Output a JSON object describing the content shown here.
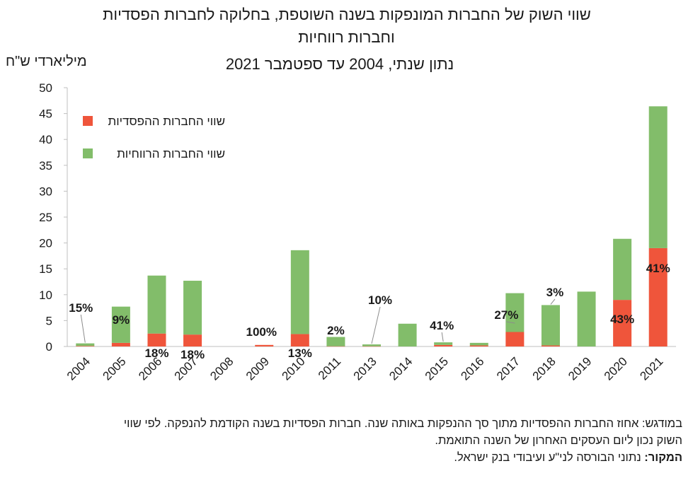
{
  "title_line1": "שווי השוק של החברות המונפקות בשנה השוטפת, בחלוקה לחברות הפסדיות",
  "title_line2": "וחברות רווחיות",
  "subtitle": "נתון שנתי, 2004 עד ספטמבר 2021",
  "unit_label": "מיליארדי ש\"ח",
  "legend": {
    "loss": "שווי החברות ההפסדיות",
    "profit": "שווי החברות הרווחיות"
  },
  "colors": {
    "loss": "#ef553b",
    "profit": "#82bd6a",
    "axis": "#bfbfbf",
    "text": "#1a1a1a"
  },
  "chart_data": {
    "type": "bar",
    "stacked": true,
    "categories": [
      "2004",
      "2005",
      "2006",
      "2007",
      "2008",
      "2009",
      "2010",
      "2011",
      "2013",
      "2014",
      "2015",
      "2016",
      "2017",
      "2018",
      "2019",
      "2020",
      "2021"
    ],
    "series": [
      {
        "name": "שווי החברות ההפסדיות",
        "values": [
          0.1,
          0.7,
          2.5,
          2.3,
          0,
          0.3,
          2.4,
          0.04,
          0.04,
          0,
          0.3,
          0.2,
          2.8,
          0.2,
          0,
          9.0,
          19.0
        ]
      },
      {
        "name": "שווי החברות הרווחיות",
        "values": [
          0.5,
          7.0,
          11.2,
          10.4,
          0,
          0,
          16.2,
          1.8,
          0.36,
          4.4,
          0.5,
          0.5,
          7.5,
          7.8,
          10.6,
          11.8,
          27.4
        ]
      }
    ],
    "loss_share_labels": [
      "15%",
      "9%",
      "18%",
      "18%",
      "",
      "100%",
      "13%",
      "2%",
      "10%",
      "",
      "41%",
      "",
      "27%",
      "3%",
      "",
      "43%",
      "41%"
    ],
    "ylim": [
      0,
      50
    ],
    "yticks": [
      0,
      5,
      10,
      15,
      20,
      25,
      30,
      35,
      40,
      45,
      50
    ],
    "grid": false,
    "legend_position": "top-left"
  },
  "notes": {
    "line1": "במודגש: אחוז החברות ההפסדיות מתוך סך ההנפקות באותה שנה. חברות הפסדיות בשנה הקודמת להנפקה. לפי שווי",
    "line2": "השוק נכון ליום העסקים האחרון של השנה התואמת.",
    "source_label": "המקור:",
    "source_text": " נתוני הבורסה לני\"ע ועיבודי בנק ישראל."
  }
}
